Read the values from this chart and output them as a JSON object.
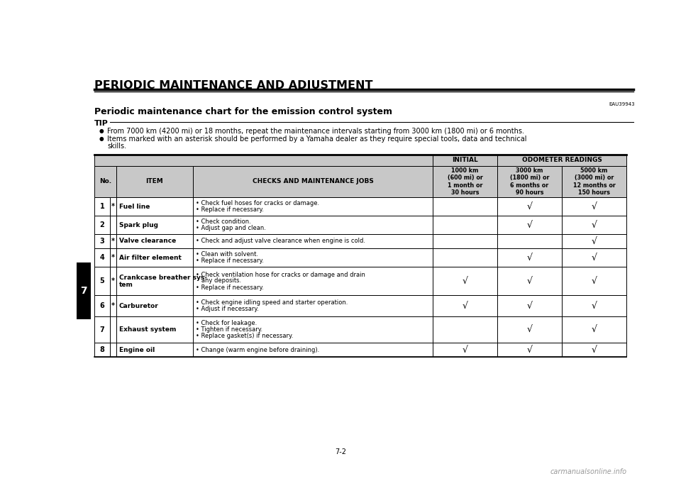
{
  "page_title": "PERIODIC MAINTENANCE AND ADJUSTMENT",
  "section_code": "EAU39943",
  "section_title": "Periodic maintenance chart for the emission control system",
  "tip_bullets": [
    "From 7000 km (4200 mi) or 18 months, repeat the maintenance intervals starting from 3000 km (1800 mi) or 6 months.",
    "Items marked with an asterisk should be performed by a Yamaha dealer as they require special tools, data and technical skills."
  ],
  "col_headers": {
    "initial": "INITIAL",
    "odometer": "ODOMETER READINGS",
    "col1_title": "1000 km\n(600 mi) or\n1 month or\n30 hours",
    "col2_title": "3000 km\n(1800 mi) or\n6 months or\n90 hours",
    "col3_title": "5000 km\n(3000 mi) or\n12 months or\n150 hours"
  },
  "rows": [
    {
      "no": "1",
      "asterisk": true,
      "item": "Fuel line",
      "jobs": "• Check fuel hoses for cracks or damage.\n• Replace if necessary.",
      "col1": false,
      "col2": true,
      "col3": true
    },
    {
      "no": "2",
      "asterisk": false,
      "item": "Spark plug",
      "jobs": "• Check condition.\n• Adjust gap and clean.",
      "col1": false,
      "col2": true,
      "col3": true
    },
    {
      "no": "3",
      "asterisk": true,
      "item": "Valve clearance",
      "jobs": "• Check and adjust valve clearance when engine is cold.",
      "col1": false,
      "col2": false,
      "col3": true
    },
    {
      "no": "4",
      "asterisk": true,
      "item": "Air filter element",
      "jobs": "• Clean with solvent.\n• Replace if necessary.",
      "col1": false,
      "col2": true,
      "col3": true
    },
    {
      "no": "5",
      "asterisk": true,
      "item": "Crankcase breather sys-\ntem",
      "jobs": "• Check ventilation hose for cracks or damage and drain\n   any deposits.\n• Replace if necessary.",
      "col1": true,
      "col2": true,
      "col3": true
    },
    {
      "no": "6",
      "asterisk": true,
      "item": "Carburetor",
      "jobs": "• Check engine idling speed and starter operation.\n• Adjust if necessary.",
      "col1": true,
      "col2": true,
      "col3": true
    },
    {
      "no": "7",
      "asterisk": false,
      "item": "Exhaust system",
      "jobs": "• Check for leakage.\n• Tighten if necessary.\n• Replace gasket(s) if necessary.",
      "col1": false,
      "col2": true,
      "col3": true
    },
    {
      "no": "8",
      "asterisk": false,
      "item": "Engine oil",
      "jobs": "• Change (warm engine before draining).",
      "col1": true,
      "col2": true,
      "col3": true
    }
  ],
  "page_number": "7-2",
  "chapter_number": "7",
  "bg_color": "#ffffff"
}
